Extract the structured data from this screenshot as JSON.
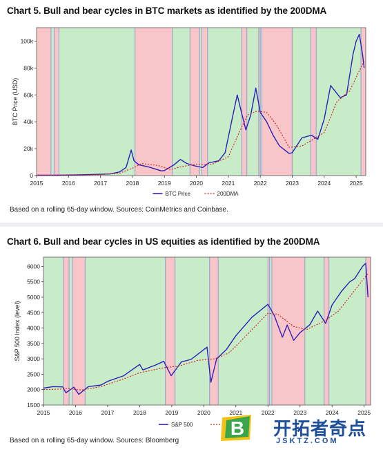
{
  "chart_data": [
    {
      "type": "line",
      "title": "Chart 5. Bull and bear cycles in BTC markets as identified by the 200DMA",
      "ylabel": "BTC Price (USD)",
      "xlabel": "",
      "xlim": [
        2015.0,
        2025.3
      ],
      "ylim": [
        0,
        110000
      ],
      "x_ticks": [
        "2015",
        "2016",
        "2017",
        "2018",
        "2019",
        "2020",
        "2021",
        "2022",
        "2023",
        "2024",
        "2025"
      ],
      "y_ticks": [
        "0",
        "20k",
        "40k",
        "60k",
        "80k",
        "100k"
      ],
      "y_tick_values": [
        0,
        20000,
        40000,
        60000,
        80000,
        100000
      ],
      "regimes": [
        {
          "state": "bear",
          "start": 2015.0,
          "end": 2015.45
        },
        {
          "state": "bull",
          "start": 2015.45,
          "end": 2015.55
        },
        {
          "state": "bear",
          "start": 2015.55,
          "end": 2015.7
        },
        {
          "state": "bull",
          "start": 2015.7,
          "end": 2018.08
        },
        {
          "state": "bear",
          "start": 2018.08,
          "end": 2019.25
        },
        {
          "state": "bull",
          "start": 2019.25,
          "end": 2019.8
        },
        {
          "state": "bear",
          "start": 2019.8,
          "end": 2020.1
        },
        {
          "state": "bull",
          "start": 2020.1,
          "end": 2020.17
        },
        {
          "state": "bear",
          "start": 2020.17,
          "end": 2020.35
        },
        {
          "state": "bull",
          "start": 2020.35,
          "end": 2021.42
        },
        {
          "state": "bear",
          "start": 2021.42,
          "end": 2021.58
        },
        {
          "state": "bull",
          "start": 2021.58,
          "end": 2021.95
        },
        {
          "state": "bear",
          "start": 2021.95,
          "end": 2022.0
        },
        {
          "state": "bull",
          "start": 2022.0,
          "end": 2022.05
        },
        {
          "state": "bear",
          "start": 2022.05,
          "end": 2023.0
        },
        {
          "state": "bull",
          "start": 2023.0,
          "end": 2023.58
        },
        {
          "state": "bear",
          "start": 2023.58,
          "end": 2023.75
        },
        {
          "state": "bull",
          "start": 2023.75,
          "end": 2025.15
        },
        {
          "state": "bear",
          "start": 2025.15,
          "end": 2025.3
        }
      ],
      "regime_edges": [
        2015.45,
        2015.55,
        2015.7,
        2018.08,
        2019.25,
        2019.8,
        2020.1,
        2020.17,
        2020.35,
        2021.42,
        2021.58,
        2021.95,
        2022.0,
        2022.05,
        2023.0,
        2023.58,
        2023.75,
        2025.15
      ],
      "series": [
        {
          "name": "BTC Price",
          "x": [
            2015.0,
            2015.5,
            2016.0,
            2016.5,
            2017.0,
            2017.3,
            2017.6,
            2017.8,
            2017.96,
            2018.05,
            2018.2,
            2018.5,
            2018.9,
            2019.0,
            2019.3,
            2019.5,
            2019.7,
            2019.95,
            2020.2,
            2020.4,
            2020.7,
            2020.9,
            2021.1,
            2021.28,
            2021.4,
            2021.55,
            2021.7,
            2021.86,
            2022.0,
            2022.2,
            2022.4,
            2022.6,
            2022.9,
            2023.0,
            2023.3,
            2023.6,
            2023.8,
            2024.0,
            2024.2,
            2024.5,
            2024.7,
            2024.9,
            2025.0,
            2025.1,
            2025.2,
            2025.25
          ],
          "values": [
            300,
            250,
            430,
            650,
            1000,
            1200,
            2700,
            6000,
            19000,
            11000,
            8000,
            6500,
            3500,
            3700,
            8000,
            12000,
            9000,
            7200,
            6000,
            9500,
            11000,
            17000,
            40000,
            60000,
            48000,
            34000,
            45000,
            65000,
            47000,
            40000,
            30000,
            22000,
            16500,
            17000,
            28000,
            30000,
            27000,
            42000,
            67000,
            58000,
            60000,
            90000,
            100000,
            105000,
            90000,
            80000
          ]
        },
        {
          "name": "200DMA",
          "x": [
            2015.0,
            2016.0,
            2017.0,
            2017.6,
            2018.0,
            2018.3,
            2018.8,
            2019.2,
            2019.5,
            2020.0,
            2020.5,
            2021.0,
            2021.3,
            2021.6,
            2021.9,
            2022.2,
            2022.5,
            2022.9,
            2023.3,
            2023.7,
            2024.0,
            2024.4,
            2024.8,
            2025.1,
            2025.25
          ],
          "values": [
            280,
            380,
            700,
            1800,
            5500,
            9000,
            7500,
            4500,
            6500,
            8500,
            8500,
            14000,
            30000,
            45000,
            48000,
            47000,
            38000,
            21000,
            22000,
            27500,
            32000,
            55000,
            63000,
            78000,
            85000
          ]
        }
      ],
      "legend": {
        "placement": "bottom-center",
        "entries": [
          "BTC Price",
          "200DMA"
        ]
      },
      "note": "Based on a rolling 65-day window. Sources: CoinMetrics and Coinbase."
    },
    {
      "type": "line",
      "title": "Chart 6. Bull and bear cycles in US equities as identified by the 200DMA",
      "ylabel": "S&P 500 Index (level)",
      "xlabel": "",
      "xlim": [
        2015.0,
        2025.2
      ],
      "ylim": [
        1500,
        6300
      ],
      "x_ticks": [
        "2015",
        "2016",
        "2017",
        "2018",
        "2019",
        "2020",
        "2021",
        "2022",
        "2023",
        "2024",
        "2025"
      ],
      "y_ticks": [
        "1500",
        "2000",
        "2500",
        "3000",
        "3500",
        "4000",
        "4500",
        "5000",
        "5500",
        "6000"
      ],
      "y_tick_values": [
        1500,
        2000,
        2500,
        3000,
        3500,
        4000,
        4500,
        5000,
        5500,
        6000
      ],
      "regimes": [
        {
          "state": "bull",
          "start": 2015.0,
          "end": 2015.62
        },
        {
          "state": "bear",
          "start": 2015.62,
          "end": 2015.8
        },
        {
          "state": "bull",
          "start": 2015.8,
          "end": 2015.9
        },
        {
          "state": "bear",
          "start": 2015.9,
          "end": 2016.3
        },
        {
          "state": "bull",
          "start": 2016.3,
          "end": 2018.8
        },
        {
          "state": "bear",
          "start": 2018.8,
          "end": 2019.1
        },
        {
          "state": "bull",
          "start": 2019.1,
          "end": 2020.18
        },
        {
          "state": "bear",
          "start": 2020.18,
          "end": 2020.45
        },
        {
          "state": "bull",
          "start": 2020.45,
          "end": 2022.0
        },
        {
          "state": "bear",
          "start": 2022.0,
          "end": 2022.05
        },
        {
          "state": "bull",
          "start": 2022.05,
          "end": 2022.12
        },
        {
          "state": "bear",
          "start": 2022.12,
          "end": 2023.15
        },
        {
          "state": "bull",
          "start": 2023.15,
          "end": 2023.75
        },
        {
          "state": "bear",
          "start": 2023.75,
          "end": 2023.9
        },
        {
          "state": "bull",
          "start": 2023.9,
          "end": 2025.05
        },
        {
          "state": "bear",
          "start": 2025.05,
          "end": 2025.2
        }
      ],
      "regime_edges": [
        2015.62,
        2015.8,
        2015.9,
        2016.3,
        2018.8,
        2019.1,
        2020.18,
        2020.45,
        2022.0,
        2022.05,
        2022.12,
        2023.15,
        2023.75,
        2023.9,
        2025.05
      ],
      "series": [
        {
          "name": "S&P 500",
          "x": [
            2015.0,
            2015.3,
            2015.6,
            2015.7,
            2015.95,
            2016.1,
            2016.4,
            2016.8,
            2017.0,
            2017.5,
            2018.0,
            2018.1,
            2018.5,
            2018.75,
            2018.98,
            2019.3,
            2019.6,
            2020.1,
            2020.22,
            2020.4,
            2020.7,
            2021.0,
            2021.5,
            2022.0,
            2022.2,
            2022.45,
            2022.6,
            2022.8,
            2023.0,
            2023.3,
            2023.55,
            2023.8,
            2024.0,
            2024.3,
            2024.55,
            2024.7,
            2024.95,
            2025.05,
            2025.12
          ],
          "values": [
            2050,
            2100,
            2090,
            1900,
            2080,
            1850,
            2100,
            2150,
            2270,
            2450,
            2820,
            2640,
            2800,
            2920,
            2450,
            2900,
            2980,
            3380,
            2240,
            3000,
            3300,
            3750,
            4350,
            4770,
            4400,
            3700,
            4100,
            3600,
            3850,
            4100,
            4550,
            4150,
            4750,
            5200,
            5500,
            5600,
            6000,
            6100,
            5000
          ]
        },
        {
          "name": "200DMA",
          "x": [
            2015.0,
            2015.8,
            2016.2,
            2016.8,
            2017.5,
            2018.0,
            2018.8,
            2019.2,
            2019.8,
            2020.35,
            2020.8,
            2021.5,
            2022.0,
            2022.3,
            2022.8,
            2023.2,
            2023.8,
            2024.2,
            2024.8,
            2025.1,
            2025.15
          ],
          "values": [
            2000,
            2030,
            1990,
            2100,
            2350,
            2550,
            2720,
            2760,
            2950,
            3000,
            3200,
            3950,
            4480,
            4450,
            4050,
            3950,
            4250,
            4550,
            5350,
            5750,
            5720
          ]
        }
      ],
      "legend": {
        "placement": "bottom-center",
        "entries": [
          "S&P 500",
          "200DMA"
        ]
      },
      "note": "Based on a rolling 65-day window. Sources: Bloomberg"
    }
  ],
  "watermark": {
    "brand": "开拓者奇点",
    "domain": "JSKTZ.COM",
    "letter": "B"
  },
  "colors": {
    "bull": "#c8ecc8",
    "bear": "#f8c6c8",
    "price": "#2a1fb8",
    "dma": "#d41b1b",
    "edge": "#8e9ad0"
  }
}
